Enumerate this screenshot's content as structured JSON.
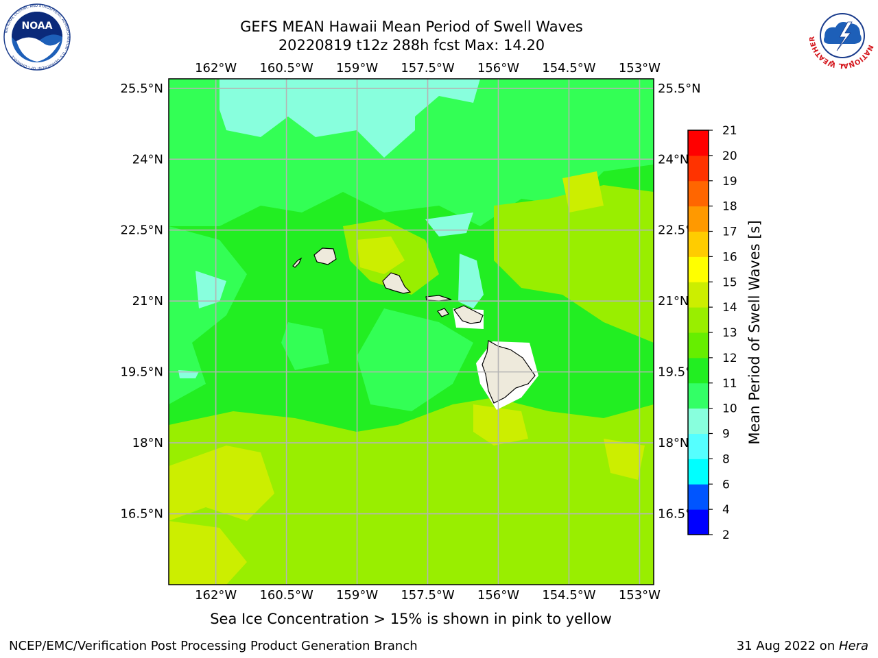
{
  "title": {
    "line1": "GEFS MEAN Hawaii Mean Period of Swell Waves",
    "line2": "20220819 t12z 288h fcst   Max: 14.20"
  },
  "map": {
    "lon_ticks": [
      "162°W",
      "160.5°W",
      "159°W",
      "157.5°W",
      "156°W",
      "154.5°W",
      "153°W"
    ],
    "lat_ticks": [
      "25.5°N",
      "24°N",
      "22.5°N",
      "21°N",
      "19.5°N",
      "18°N",
      "16.5°N"
    ],
    "lon_range": [
      -163.0,
      -152.7
    ],
    "lat_range": [
      15.0,
      25.7
    ],
    "colors": {
      "cyan_light": "#88ffdd",
      "green_mid": "#33ff55",
      "green": "#22ee22",
      "green_yellow": "#99ee00",
      "yellow_green": "#ccee00",
      "land": "#eeeadc",
      "grid": "#b4b4b4"
    }
  },
  "colorbar": {
    "label": "Mean Period of Swell Waves [s]",
    "ticks": [
      "2",
      "4",
      "6",
      "8",
      "9",
      "10",
      "11",
      "12",
      "13",
      "14",
      "15",
      "16",
      "17",
      "18",
      "19",
      "20",
      "21"
    ],
    "colors": [
      "#0000ff",
      "#0055ff",
      "#00ffff",
      "#55ffff",
      "#88ffdd",
      "#33ff66",
      "#22ee22",
      "#66ee00",
      "#99ee00",
      "#ccee00",
      "#ffff00",
      "#ffcc00",
      "#ff9900",
      "#ff6600",
      "#ff3300",
      "#ff0000"
    ]
  },
  "subnote": "Sea Ice Concentration > 15% is shown in pink to yellow",
  "footer": {
    "left": "NCEP/EMC/Verification Post Processing Product Generation Branch",
    "right_date": "31 Aug 2022 on ",
    "right_machine": "Hera"
  },
  "logos": {
    "noaa_text": "NOAA",
    "noaa_ring": "NATIONAL OCEANIC AND ATMOSPHERIC ADMINISTRATION · U.S. DEPARTMENT OF COMMERCE",
    "nws_ring": "NATIONAL WEATHER SERVICE"
  }
}
